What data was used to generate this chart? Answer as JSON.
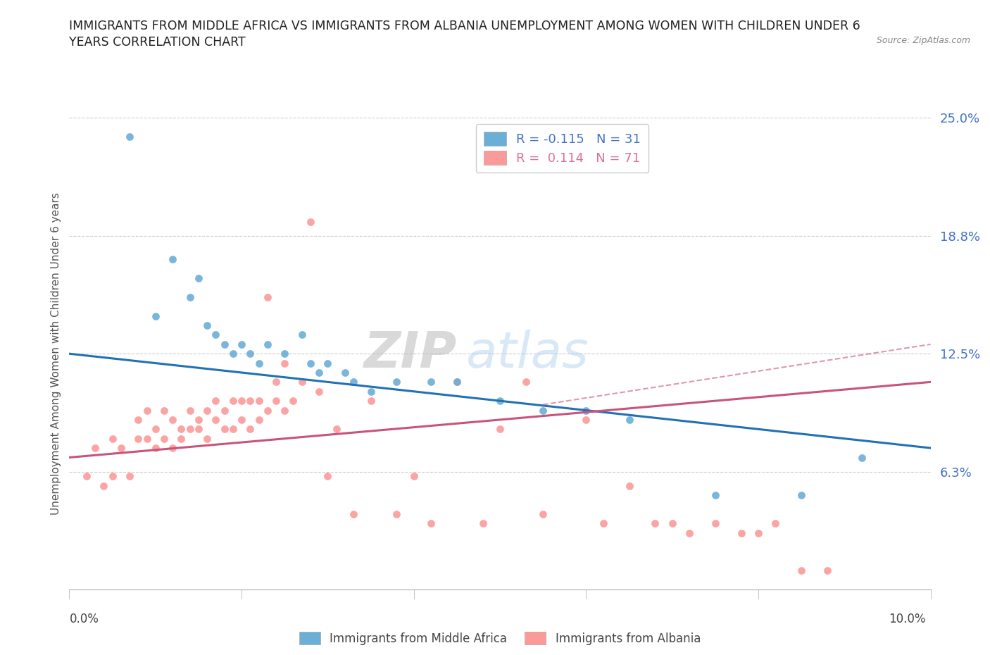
{
  "title_line1": "IMMIGRANTS FROM MIDDLE AFRICA VS IMMIGRANTS FROM ALBANIA UNEMPLOYMENT AMONG WOMEN WITH CHILDREN UNDER 6",
  "title_line2": "YEARS CORRELATION CHART",
  "source_text": "Source: ZipAtlas.com",
  "xlabel_bottom_left": "0.0%",
  "xlabel_bottom_right": "10.0%",
  "ylabel": "Unemployment Among Women with Children Under 6 years",
  "legend_label1": "Immigrants from Middle Africa",
  "legend_label2": "Immigrants from Albania",
  "r1": -0.115,
  "n1": 31,
  "r2": 0.114,
  "n2": 71,
  "color1": "#6baed6",
  "color2": "#fb9a99",
  "trendline1_color": "#2171b5",
  "trendline2_color": "#c9547a",
  "watermark_zip": "ZIP",
  "watermark_atlas": "atlas",
  "xlim": [
    0.0,
    0.1
  ],
  "ylim": [
    0.0,
    0.25
  ],
  "yticks": [
    0.0,
    0.0625,
    0.125,
    0.1875,
    0.25
  ],
  "ytick_labels": [
    "",
    "6.3%",
    "12.5%",
    "18.8%",
    "25.0%"
  ],
  "grid_color": "#cccccc",
  "scatter1_x": [
    0.007,
    0.01,
    0.012,
    0.014,
    0.015,
    0.016,
    0.017,
    0.018,
    0.019,
    0.02,
    0.021,
    0.022,
    0.023,
    0.025,
    0.027,
    0.028,
    0.029,
    0.03,
    0.032,
    0.033,
    0.035,
    0.038,
    0.042,
    0.045,
    0.05,
    0.055,
    0.06,
    0.065,
    0.075,
    0.085,
    0.092
  ],
  "scatter1_y": [
    0.24,
    0.145,
    0.175,
    0.155,
    0.165,
    0.14,
    0.135,
    0.13,
    0.125,
    0.13,
    0.125,
    0.12,
    0.13,
    0.125,
    0.135,
    0.12,
    0.115,
    0.12,
    0.115,
    0.11,
    0.105,
    0.11,
    0.11,
    0.11,
    0.1,
    0.095,
    0.095,
    0.09,
    0.05,
    0.05,
    0.07
  ],
  "scatter2_x": [
    0.002,
    0.003,
    0.004,
    0.005,
    0.005,
    0.006,
    0.007,
    0.008,
    0.008,
    0.009,
    0.009,
    0.01,
    0.01,
    0.011,
    0.011,
    0.012,
    0.012,
    0.013,
    0.013,
    0.014,
    0.014,
    0.015,
    0.015,
    0.016,
    0.016,
    0.017,
    0.017,
    0.018,
    0.018,
    0.019,
    0.019,
    0.02,
    0.02,
    0.021,
    0.021,
    0.022,
    0.022,
    0.023,
    0.023,
    0.024,
    0.024,
    0.025,
    0.025,
    0.026,
    0.027,
    0.028,
    0.029,
    0.03,
    0.031,
    0.033,
    0.035,
    0.038,
    0.04,
    0.042,
    0.045,
    0.048,
    0.05,
    0.053,
    0.055,
    0.06,
    0.062,
    0.065,
    0.068,
    0.07,
    0.072,
    0.075,
    0.078,
    0.08,
    0.082,
    0.085,
    0.088
  ],
  "scatter2_y": [
    0.06,
    0.075,
    0.055,
    0.06,
    0.08,
    0.075,
    0.06,
    0.08,
    0.09,
    0.08,
    0.095,
    0.075,
    0.085,
    0.08,
    0.095,
    0.075,
    0.09,
    0.08,
    0.085,
    0.085,
    0.095,
    0.09,
    0.085,
    0.08,
    0.095,
    0.09,
    0.1,
    0.085,
    0.095,
    0.085,
    0.1,
    0.09,
    0.1,
    0.085,
    0.1,
    0.09,
    0.1,
    0.095,
    0.155,
    0.1,
    0.11,
    0.095,
    0.12,
    0.1,
    0.11,
    0.195,
    0.105,
    0.06,
    0.085,
    0.04,
    0.1,
    0.04,
    0.06,
    0.035,
    0.11,
    0.035,
    0.085,
    0.11,
    0.04,
    0.09,
    0.035,
    0.055,
    0.035,
    0.035,
    0.03,
    0.035,
    0.03,
    0.03,
    0.035,
    0.01,
    0.01
  ],
  "trendline1_x0": 0.0,
  "trendline1_y0": 0.125,
  "trendline1_x1": 0.1,
  "trendline1_y1": 0.075,
  "trendline2_x0": 0.0,
  "trendline2_y0": 0.07,
  "trendline2_x1": 0.1,
  "trendline2_y1": 0.11
}
